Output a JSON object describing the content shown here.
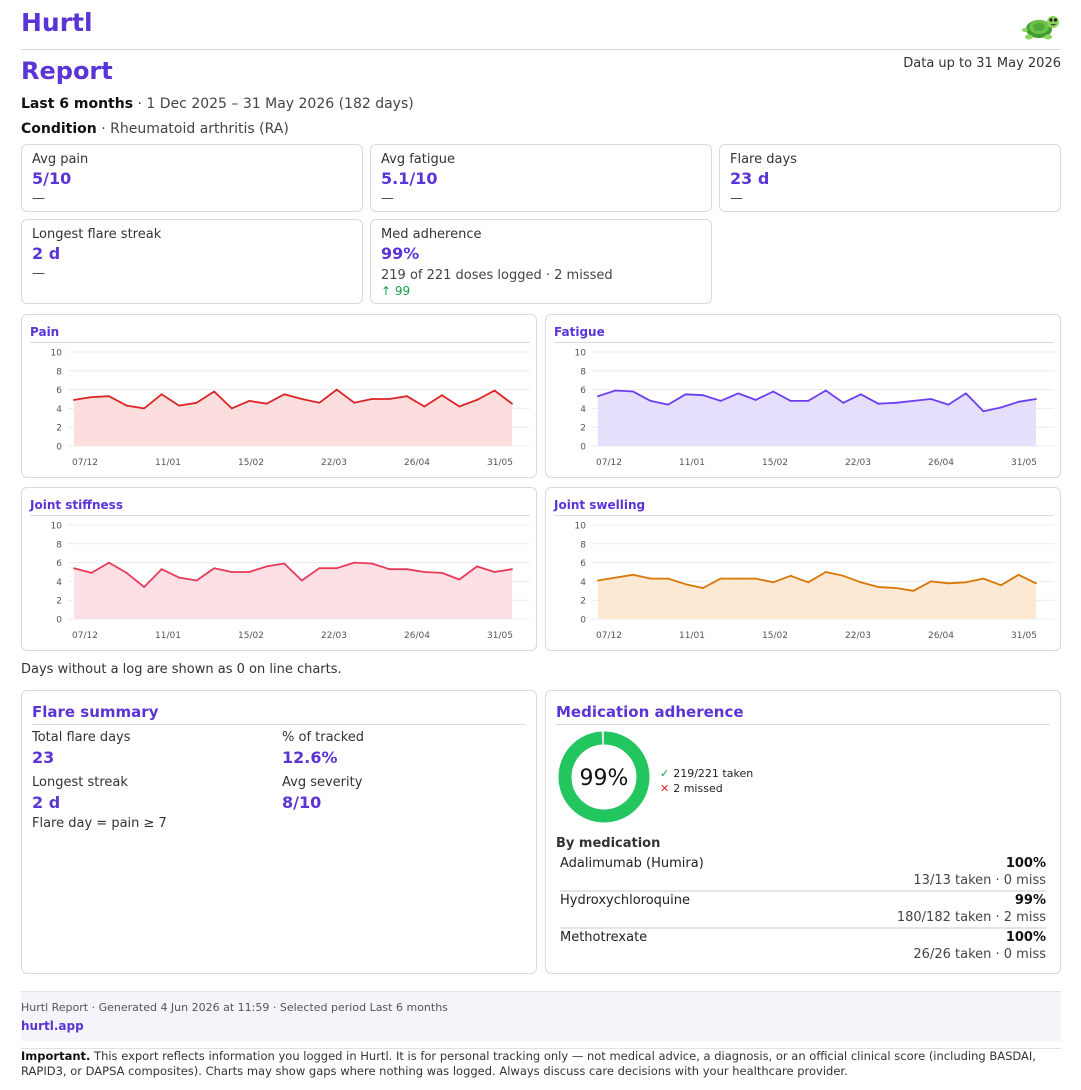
{
  "app": {
    "name": "Hurtl",
    "mascot_icon": "turtle-icon"
  },
  "report": {
    "title": "Report",
    "data_upto": "Data up to 31 May 2026",
    "period_label": "Last 6 months",
    "period_range": "· 1 Dec 2025 – 31 May 2026 (182 days)",
    "condition_label": "Condition",
    "condition_value": "· Rheumatoid arthritis (RA)"
  },
  "stats": {
    "avg_pain": {
      "label": "Avg pain",
      "value": "5/10",
      "trend": "—"
    },
    "avg_fatigue": {
      "label": "Avg fatigue",
      "value": "5.1/10",
      "trend": "—"
    },
    "flare_days": {
      "label": "Flare days",
      "value": "23 d",
      "trend": "—"
    },
    "longest_streak": {
      "label": "Longest flare streak",
      "value": "2 d",
      "trend": "—"
    },
    "med_adherence": {
      "label": "Med adherence",
      "value": "99%",
      "sub": "219 of 221 doses logged · 2 missed",
      "trend": "↑ 99"
    }
  },
  "chart_data": [
    {
      "type": "area",
      "title": "Pain",
      "color": "#dc2626",
      "fill": "#fcdede",
      "ylim": [
        0,
        10
      ],
      "yticks": [
        0,
        2,
        4,
        6,
        8,
        10
      ],
      "xticks": [
        "07/12",
        "11/01",
        "15/02",
        "22/03",
        "26/04",
        "31/05"
      ],
      "values": [
        4.9,
        5.2,
        5.3,
        4.3,
        4.0,
        5.5,
        4.3,
        4.6,
        5.8,
        4.0,
        4.8,
        4.5,
        5.5,
        5.0,
        4.6,
        6.0,
        4.6,
        5.0,
        5.0,
        5.3,
        4.2,
        5.4,
        4.2,
        4.9,
        5.9,
        4.5
      ]
    },
    {
      "type": "area",
      "title": "Fatigue",
      "color": "#6d3df0",
      "fill": "#e6dffc",
      "ylim": [
        0,
        10
      ],
      "yticks": [
        0,
        2,
        4,
        6,
        8,
        10
      ],
      "xticks": [
        "07/12",
        "11/01",
        "15/02",
        "22/03",
        "26/04",
        "31/05"
      ],
      "values": [
        5.3,
        5.9,
        5.8,
        4.8,
        4.4,
        5.5,
        5.4,
        4.8,
        5.6,
        4.9,
        5.8,
        4.8,
        4.8,
        5.9,
        4.6,
        5.5,
        4.5,
        4.6,
        4.8,
        5.0,
        4.4,
        5.6,
        3.7,
        4.1,
        4.7,
        5.0
      ]
    },
    {
      "type": "area",
      "title": "Joint stiffness",
      "color": "#e63b5a",
      "fill": "#fde0e6",
      "ylim": [
        0,
        10
      ],
      "yticks": [
        0,
        2,
        4,
        6,
        8,
        10
      ],
      "xticks": [
        "07/12",
        "11/01",
        "15/02",
        "22/03",
        "26/04",
        "31/05"
      ],
      "values": [
        5.4,
        4.9,
        6.0,
        4.9,
        3.4,
        5.3,
        4.4,
        4.1,
        5.4,
        5.0,
        5.0,
        5.6,
        5.9,
        4.1,
        5.4,
        5.4,
        6.0,
        5.9,
        5.3,
        5.3,
        5.0,
        4.9,
        4.2,
        5.6,
        5.0,
        5.3
      ]
    },
    {
      "type": "area",
      "title": "Joint swelling",
      "color": "#d97706",
      "fill": "#fbe9d4",
      "ylim": [
        0,
        10
      ],
      "yticks": [
        0,
        2,
        4,
        6,
        8,
        10
      ],
      "xticks": [
        "07/12",
        "11/01",
        "15/02",
        "22/03",
        "26/04",
        "31/05"
      ],
      "values": [
        4.1,
        4.4,
        4.7,
        4.3,
        4.3,
        3.7,
        3.3,
        4.3,
        4.3,
        4.3,
        3.9,
        4.6,
        3.9,
        5.0,
        4.6,
        3.9,
        3.4,
        3.3,
        3.0,
        4.0,
        3.8,
        3.9,
        4.3,
        3.6,
        4.7,
        3.8
      ]
    }
  ],
  "chart_note": "Days without a log are shown as 0 on line charts.",
  "flare_summary": {
    "title": "Flare summary",
    "total_label": "Total flare days",
    "total_value": "23",
    "pct_label": "% of tracked",
    "pct_value": "12.6%",
    "streak_label": "Longest streak",
    "streak_value": "2 d",
    "severity_label": "Avg severity",
    "severity_value": "8/10",
    "note": "Flare day = pain ≥ 7"
  },
  "adherence": {
    "title": "Medication adherence",
    "percent": 99,
    "percent_label": "99%",
    "ring_color": "#22c55e",
    "taken": "219/221 taken",
    "missed": "2 missed",
    "by_med_title": "By medication",
    "meds": [
      {
        "name": "Adalimumab (Humira)",
        "pct": "100%",
        "detail": "13/13 taken · 0 miss"
      },
      {
        "name": "Hydroxychloroquine",
        "pct": "99%",
        "detail": "180/182 taken · 2 miss"
      },
      {
        "name": "Methotrexate",
        "pct": "100%",
        "detail": "26/26 taken · 0 miss"
      }
    ]
  },
  "footer": {
    "meta": "Hurtl Report · Generated 4 Jun 2026 at 11:59 · Selected period Last 6 months",
    "link": "hurtl.app",
    "important_label": "Important.",
    "disclaimer": "This export reflects information you logged in Hurtl. It is for personal tracking only — not medical advice, a diagnosis, or an official clinical score (including BASDAI, RAPID3, or DAPSA composites). Charts may show gaps where nothing was logged. Always discuss care decisions with your healthcare provider."
  }
}
